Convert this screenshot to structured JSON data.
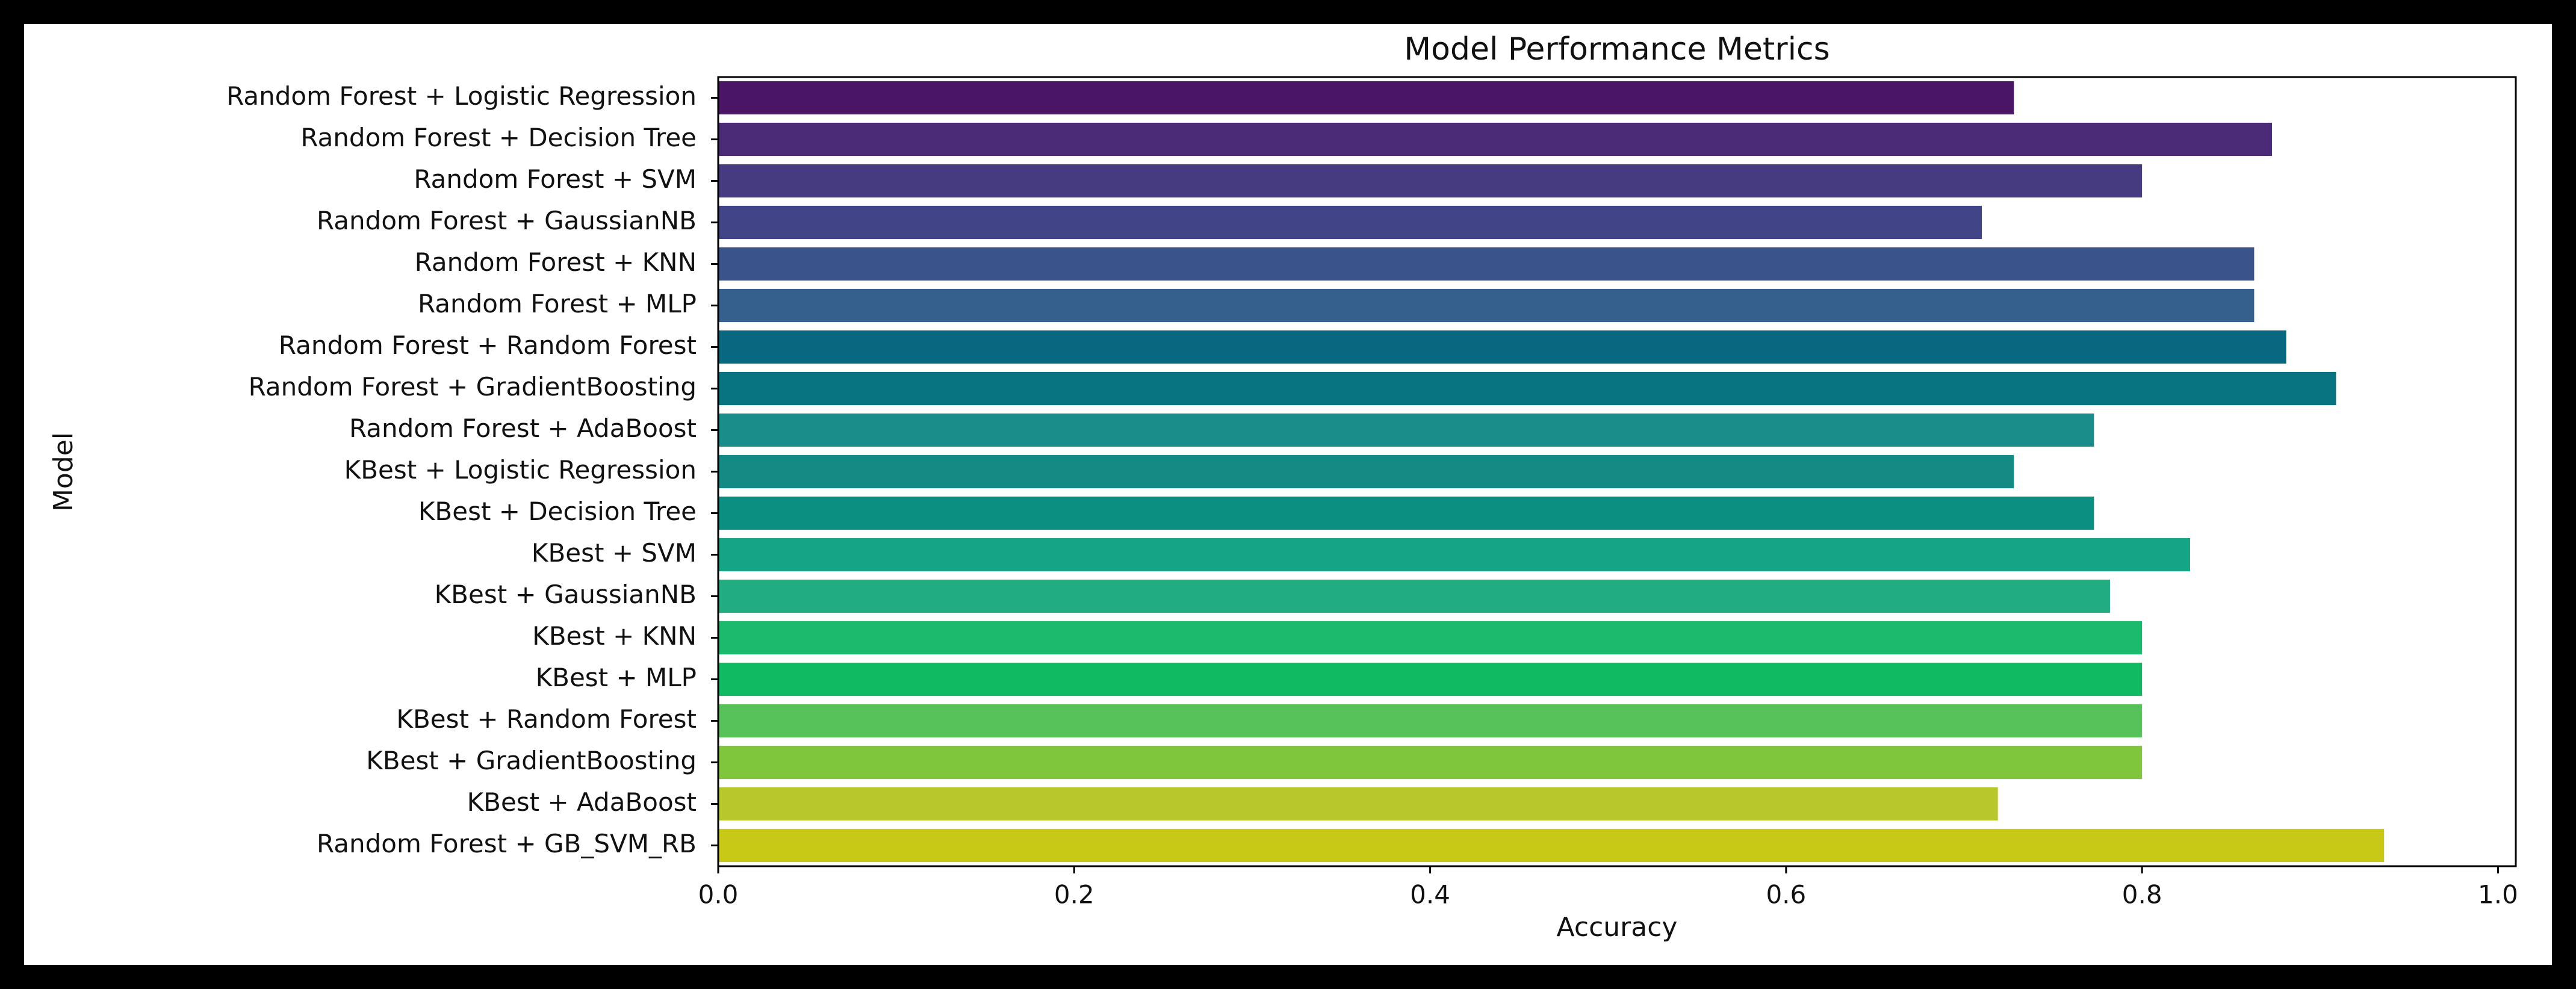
{
  "chart_data": {
    "type": "barh",
    "title": "Model Performance Metrics",
    "xlabel": "Accuracy",
    "ylabel": "Model",
    "categories": [
      "Random Forest + Logistic Regression",
      "Random Forest + Decision Tree",
      "Random Forest + SVM",
      "Random Forest + GaussianNB",
      "Random Forest + KNN",
      "Random Forest + MLP",
      "Random Forest + Random Forest",
      "Random Forest + GradientBoosting",
      "Random Forest + AdaBoost",
      "KBest + Logistic Regression",
      "KBest + Decision Tree",
      "KBest + SVM",
      "KBest + GaussianNB",
      "KBest + KNN",
      "KBest + MLP",
      "KBest + Random Forest",
      "KBest + GradientBoosting",
      "KBest + AdaBoost",
      "Random Forest + GB_SVM_RB"
    ],
    "values": [
      0.728,
      0.873,
      0.8,
      0.71,
      0.863,
      0.863,
      0.881,
      0.909,
      0.773,
      0.728,
      0.773,
      0.827,
      0.782,
      0.8,
      0.8,
      0.8,
      0.8,
      0.719,
      0.936
    ],
    "colors": [
      "#4a1565",
      "#4b2a78",
      "#463a80",
      "#414587",
      "#3b538b",
      "#355f8d",
      "#08687f",
      "#087482",
      "#1a8c8a",
      "#148a84",
      "#0a8f80",
      "#16a486",
      "#22ac82",
      "#1cba6c",
      "#10ba62",
      "#58c25a",
      "#80c63c",
      "#b6c82c",
      "#c8c816"
    ],
    "xlim": [
      0,
      1.01
    ],
    "xticks": [
      {
        "value": 0,
        "label": "0.0"
      },
      0.2,
      0.4,
      0.6,
      0.8,
      {
        "value": 1,
        "label": "1.0"
      }
    ]
  }
}
